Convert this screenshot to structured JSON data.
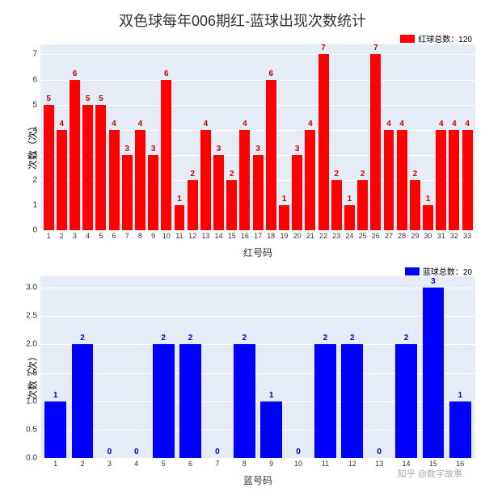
{
  "title": "双色球每年006期红-蓝球出现次数统计",
  "red_chart": {
    "type": "bar",
    "legend_label": "红球总数：120",
    "legend_color": "#ff0000",
    "bar_color": "#ff0000",
    "label_color": "#cc0000",
    "background_color": "#e5ecf6",
    "grid_color": "#ffffff",
    "ylabel": "次数（次）",
    "xlabel": "红号码",
    "ylim": [
      0,
      7.4
    ],
    "yticks": [
      0,
      1,
      2,
      3,
      4,
      5,
      6,
      7
    ],
    "categories": [
      "1",
      "2",
      "3",
      "4",
      "5",
      "6",
      "7",
      "8",
      "9",
      "10",
      "11",
      "12",
      "13",
      "14",
      "15",
      "16",
      "17",
      "18",
      "19",
      "20",
      "21",
      "22",
      "23",
      "24",
      "25",
      "26",
      "27",
      "28",
      "29",
      "30",
      "31",
      "32",
      "33"
    ],
    "values": [
      5,
      4,
      6,
      5,
      5,
      4,
      3,
      4,
      3,
      6,
      1,
      2,
      4,
      3,
      2,
      4,
      3,
      6,
      1,
      3,
      4,
      7,
      2,
      1,
      2,
      7,
      4,
      4,
      2,
      1,
      4,
      4,
      4
    ],
    "label_fontsize": 10,
    "axis_fontsize": 10
  },
  "blue_chart": {
    "type": "bar",
    "legend_label": "蓝球总数：20",
    "legend_color": "#0000ff",
    "bar_color": "#0000ff",
    "label_color": "#0000cc",
    "background_color": "#e5ecf6",
    "grid_color": "#ffffff",
    "ylabel": "次数（次）",
    "xlabel": "蓝号码",
    "ylim": [
      0,
      3.2
    ],
    "yticks": [
      0,
      0.5,
      1.0,
      1.5,
      2.0,
      2.5,
      3.0
    ],
    "ytick_labels": [
      "0.0",
      "0.5",
      "1.0",
      "1.5",
      "2.0",
      "2.5",
      "3.0"
    ],
    "categories": [
      "1",
      "2",
      "3",
      "4",
      "5",
      "6",
      "7",
      "8",
      "9",
      "10",
      "11",
      "12",
      "13",
      "14",
      "15",
      "16"
    ],
    "values": [
      1,
      2,
      0,
      0,
      2,
      2,
      0,
      2,
      1,
      0,
      2,
      2,
      0,
      2,
      3,
      1
    ],
    "label_fontsize": 10,
    "axis_fontsize": 10
  },
  "watermark": "知乎 @数字故事"
}
